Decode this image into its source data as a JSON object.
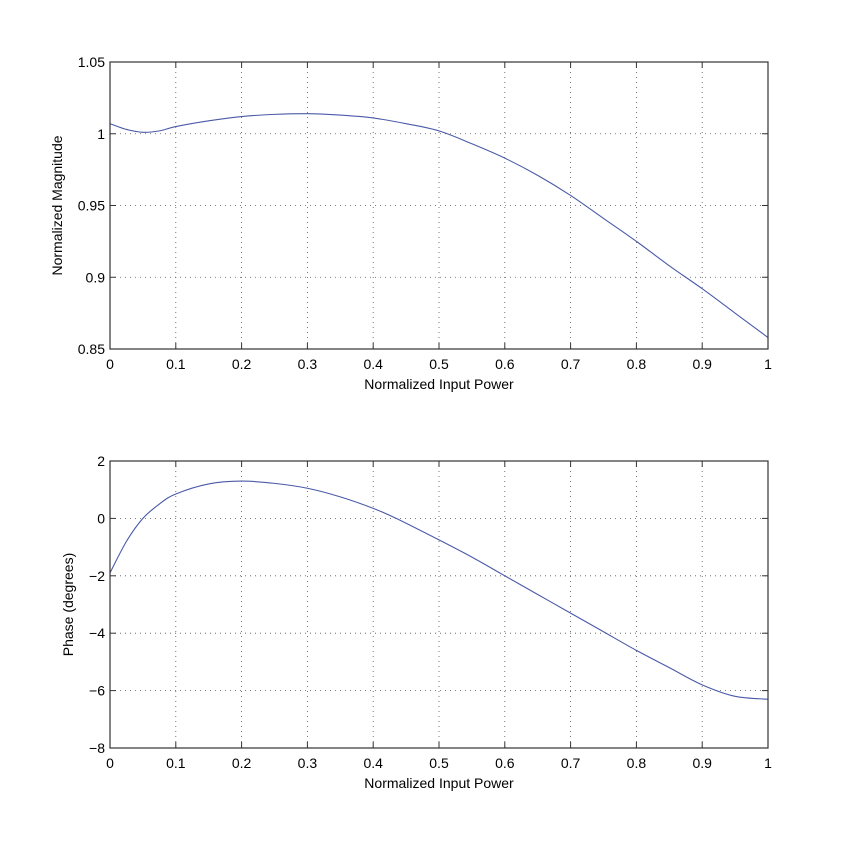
{
  "chart_data": [
    {
      "type": "line",
      "title": "",
      "xlabel": "Normalized Input Power",
      "ylabel": "Normalized Magnitude",
      "xlim": [
        0,
        1
      ],
      "ylim": [
        0.85,
        1.05
      ],
      "xticks": [
        0,
        0.1,
        0.2,
        0.3,
        0.4,
        0.5,
        0.6,
        0.7,
        0.8,
        0.9,
        1
      ],
      "xtick_labels": [
        "0",
        "0.1",
        "0.2",
        "0.3",
        "0.4",
        "0.5",
        "0.6",
        "0.7",
        "0.8",
        "0.9",
        "1"
      ],
      "yticks": [
        0.85,
        0.9,
        0.95,
        1,
        1.05
      ],
      "ytick_labels": [
        "0.85",
        "0.9",
        "0.95",
        "1",
        "1.05"
      ],
      "grid": true,
      "legend": null,
      "series": [
        {
          "name": "Normalized Magnitude",
          "color": "#4a5aa8",
          "x": [
            0,
            0.025,
            0.05,
            0.075,
            0.1,
            0.15,
            0.2,
            0.25,
            0.3,
            0.35,
            0.4,
            0.45,
            0.5,
            0.55,
            0.6,
            0.65,
            0.7,
            0.75,
            0.8,
            0.85,
            0.9,
            0.95,
            1.0
          ],
          "y": [
            1.007,
            1.003,
            1.001,
            1.002,
            1.005,
            1.009,
            1.012,
            1.0135,
            1.014,
            1.013,
            1.011,
            1.007,
            1.002,
            0.993,
            0.983,
            0.971,
            0.957,
            0.941,
            0.925,
            0.908,
            0.892,
            0.875,
            0.858
          ]
        }
      ]
    },
    {
      "type": "line",
      "title": "",
      "xlabel": "Normalized Input Power",
      "ylabel": "Phase (degrees)",
      "xlim": [
        0,
        1
      ],
      "ylim": [
        -8,
        2
      ],
      "xticks": [
        0,
        0.1,
        0.2,
        0.3,
        0.4,
        0.5,
        0.6,
        0.7,
        0.8,
        0.9,
        1
      ],
      "xtick_labels": [
        "0",
        "0.1",
        "0.2",
        "0.3",
        "0.4",
        "0.5",
        "0.6",
        "0.7",
        "0.8",
        "0.9",
        "1"
      ],
      "yticks": [
        -8,
        -6,
        -4,
        -2,
        0,
        2
      ],
      "ytick_labels": [
        "−8",
        "−6",
        "−4",
        "−2",
        "0",
        "2"
      ],
      "grid": true,
      "legend": null,
      "series": [
        {
          "name": "Phase (degrees)",
          "color": "#4a5aa8",
          "x": [
            0,
            0.025,
            0.05,
            0.075,
            0.1,
            0.15,
            0.2,
            0.25,
            0.3,
            0.35,
            0.4,
            0.435,
            0.5,
            0.55,
            0.6,
            0.65,
            0.7,
            0.75,
            0.8,
            0.85,
            0.9,
            0.95,
            1.0
          ],
          "y": [
            -1.9,
            -0.8,
            0.0,
            0.5,
            0.85,
            1.2,
            1.3,
            1.22,
            1.05,
            0.75,
            0.35,
            0.0,
            -0.75,
            -1.35,
            -2.0,
            -2.65,
            -3.3,
            -3.95,
            -4.6,
            -5.2,
            -5.8,
            -6.2,
            -6.3
          ]
        }
      ]
    }
  ]
}
